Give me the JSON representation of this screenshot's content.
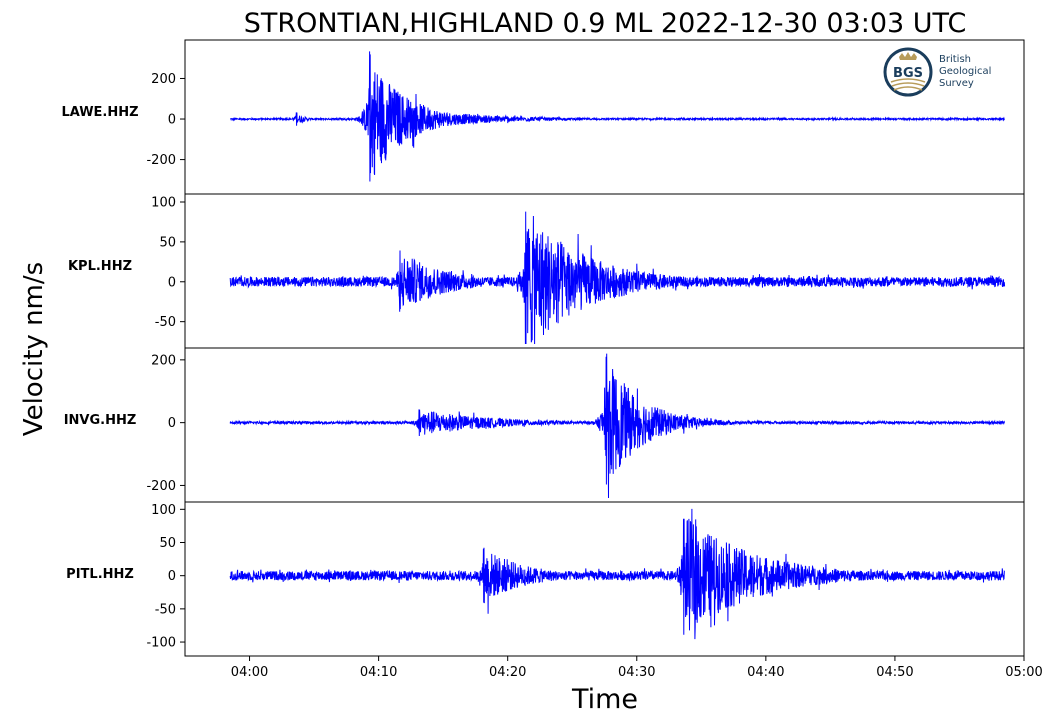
{
  "chart_data": {
    "type": "line",
    "title": "STRONTIAN,HIGHLAND 0.9 ML   2022-12-30 03:03 UTC",
    "xlabel": "Time",
    "ylabel": "Velocity nm/s",
    "x_ticks": [
      "04:00",
      "04:10",
      "04:20",
      "04:30",
      "04:40",
      "04:50",
      "05:00"
    ],
    "x_range": [
      "03:55",
      "05:00"
    ],
    "trace_time_range": [
      "03:58:30",
      "04:58:30"
    ],
    "grid": false,
    "line_color": "#0000ff",
    "panels": [
      {
        "station": "LAWE.HHZ",
        "ylim": [
          -350,
          370
        ],
        "y_ticks": [
          200,
          0,
          -200
        ],
        "y_tick_labels": [
          "200",
          "0",
          "-200"
        ],
        "noise_amplitude": 4,
        "events": [
          {
            "time": "04:03:30",
            "peak": 35,
            "decay_min": 1.5
          },
          {
            "time": "04:09:10",
            "peak": 340,
            "min": -345,
            "decay_min": 6
          },
          {
            "time": "04:12:00",
            "peak": 60,
            "decay_min": 12
          }
        ]
      },
      {
        "station": "KPL.HHZ",
        "ylim": [
          -78,
          105
        ],
        "y_ticks": [
          100,
          50,
          0,
          -50
        ],
        "y_tick_labels": [
          "100",
          "50",
          "0",
          "-50"
        ],
        "noise_amplitude": 6,
        "events": [
          {
            "time": "04:11:30",
            "peak": 40,
            "min": -72,
            "decay_min": 8
          },
          {
            "time": "04:21:15",
            "peak": 97,
            "min": -77,
            "decay_min": 10
          }
        ]
      },
      {
        "station": "INVG.HHZ",
        "ylim": [
          -240,
          225
        ],
        "y_ticks": [
          200,
          0,
          -200
        ],
        "y_tick_labels": [
          "200",
          "0",
          "-200"
        ],
        "noise_amplitude": 4,
        "events": [
          {
            "time": "04:13:00",
            "peak": 45,
            "decay_min": 12
          },
          {
            "time": "04:27:30",
            "peak": 220,
            "min": -235,
            "decay_min": 6
          }
        ]
      },
      {
        "station": "PITL.HHZ",
        "ylim": [
          -115,
          105
        ],
        "y_ticks": [
          100,
          50,
          0,
          -50,
          -100
        ],
        "y_tick_labels": [
          "100",
          "50",
          "0",
          "-50",
          "-100"
        ],
        "noise_amplitude": 7,
        "events": [
          {
            "time": "04:18:00",
            "peak": 45,
            "min": -45,
            "decay_min": 7
          },
          {
            "time": "04:33:30",
            "peak": 95,
            "min": -105,
            "decay_min": 12
          }
        ]
      }
    ]
  },
  "logo": {
    "monogram": "BGS",
    "lines": [
      "British",
      "Geological",
      "Survey"
    ],
    "primary_color": "#1a3d5c",
    "accent_color": "#b89c5a"
  }
}
